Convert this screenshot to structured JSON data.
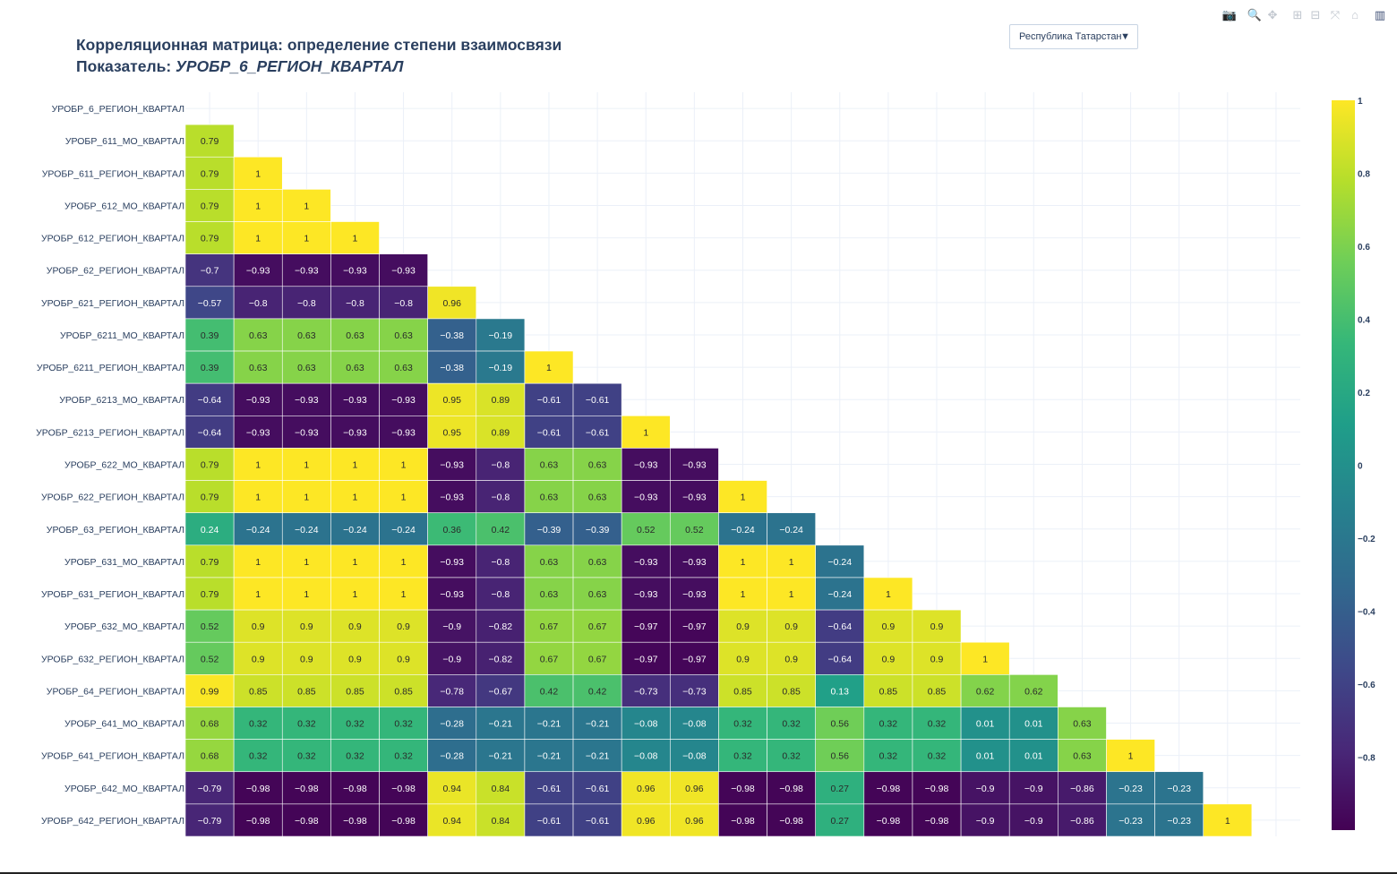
{
  "page": {
    "title_line1": "Корреляционная матрица: определение степени взаимосвязи",
    "title_line2_prefix": "Показатель: ",
    "title_line2_indicator": "УРОБР_6_РЕГИОН_КВАРТАЛ"
  },
  "dropdown": {
    "selected": "Республика Татарстан",
    "arrow": "▼"
  },
  "modebar": [
    {
      "name": "camera-icon",
      "glyph": "📷"
    },
    {
      "name": "zoom-icon",
      "glyph": "🔍"
    },
    {
      "name": "pan-icon",
      "glyph": "✥"
    },
    {
      "name": "zoom-in-icon",
      "glyph": "⊞"
    },
    {
      "name": "zoom-out-icon",
      "glyph": "⊟"
    },
    {
      "name": "autoscale-icon",
      "glyph": "⤧"
    },
    {
      "name": "reset-axes-icon",
      "glyph": "⌂"
    },
    {
      "name": "plotly-logo-icon",
      "glyph": "▥"
    }
  ],
  "chart_data": {
    "type": "heatmap",
    "colorscale": "viridis",
    "colors": [
      "#440154",
      "#482878",
      "#3e4989",
      "#31688e",
      "#26828e",
      "#1f9e89",
      "#35b779",
      "#6ece58",
      "#b5de2b",
      "#fde725"
    ],
    "zmin": -1,
    "zmax": 1,
    "colorbar_ticks": [
      "1",
      "0.8",
      "0.6",
      "0.4",
      "0.2",
      "0",
      "−0.2",
      "−0.4",
      "−0.6",
      "−0.8"
    ],
    "colorbar_tick_values": [
      1,
      0.8,
      0.6,
      0.4,
      0.2,
      0,
      -0.2,
      -0.4,
      -0.6,
      -0.8
    ],
    "rows": [
      "УРОБР_6_РЕГИОН_КВАРТАЛ",
      "УРОБР_611_МО_КВАРТАЛ",
      "УРОБР_611_РЕГИОН_КВАРТАЛ",
      "УРОБР_612_МО_КВАРТАЛ",
      "УРОБР_612_РЕГИОН_КВАРТАЛ",
      "УРОБР_62_РЕГИОН_КВАРТАЛ",
      "УРОБР_621_РЕГИОН_КВАРТАЛ",
      "УРОБР_6211_МО_КВАРТАЛ",
      "УРОБР_6211_РЕГИОН_КВАРТАЛ",
      "УРОБР_6213_МО_КВАРТАЛ",
      "УРОБР_6213_РЕГИОН_КВАРТАЛ",
      "УРОБР_622_МО_КВАРТАЛ",
      "УРОБР_622_РЕГИОН_КВАРТАЛ",
      "УРОБР_63_РЕГИОН_КВАРТАЛ",
      "УРОБР_631_МО_КВАРТАЛ",
      "УРОБР_631_РЕГИОН_КВАРТАЛ",
      "УРОБР_632_МО_КВАРТАЛ",
      "УРОБР_632_РЕГИОН_КВАРТАЛ",
      "УРОБР_64_РЕГИОН_КВАРТАЛ",
      "УРОБР_641_МО_КВАРТАЛ",
      "УРОБР_641_РЕГИОН_КВАРТАЛ",
      "УРОБР_642_МО_КВАРТАЛ",
      "УРОБР_642_РЕГИОН_КВАРТАЛ"
    ],
    "values": [
      [],
      [
        0.79
      ],
      [
        0.79,
        1
      ],
      [
        0.79,
        1,
        1
      ],
      [
        0.79,
        1,
        1,
        1
      ],
      [
        -0.7,
        -0.93,
        -0.93,
        -0.93,
        -0.93
      ],
      [
        -0.57,
        -0.8,
        -0.8,
        -0.8,
        -0.8,
        0.96
      ],
      [
        0.39,
        0.63,
        0.63,
        0.63,
        0.63,
        -0.38,
        -0.19
      ],
      [
        0.39,
        0.63,
        0.63,
        0.63,
        0.63,
        -0.38,
        -0.19,
        1
      ],
      [
        -0.64,
        -0.93,
        -0.93,
        -0.93,
        -0.93,
        0.95,
        0.89,
        -0.61,
        -0.61
      ],
      [
        -0.64,
        -0.93,
        -0.93,
        -0.93,
        -0.93,
        0.95,
        0.89,
        -0.61,
        -0.61,
        1
      ],
      [
        0.79,
        1,
        1,
        1,
        1,
        -0.93,
        -0.8,
        0.63,
        0.63,
        -0.93,
        -0.93
      ],
      [
        0.79,
        1,
        1,
        1,
        1,
        -0.93,
        -0.8,
        0.63,
        0.63,
        -0.93,
        -0.93,
        1
      ],
      [
        0.24,
        -0.24,
        -0.24,
        -0.24,
        -0.24,
        0.36,
        0.42,
        -0.39,
        -0.39,
        0.52,
        0.52,
        -0.24,
        -0.24
      ],
      [
        0.79,
        1,
        1,
        1,
        1,
        -0.93,
        -0.8,
        0.63,
        0.63,
        -0.93,
        -0.93,
        1,
        1,
        -0.24
      ],
      [
        0.79,
        1,
        1,
        1,
        1,
        -0.93,
        -0.8,
        0.63,
        0.63,
        -0.93,
        -0.93,
        1,
        1,
        -0.24,
        1
      ],
      [
        0.52,
        0.9,
        0.9,
        0.9,
        0.9,
        -0.9,
        -0.82,
        0.67,
        0.67,
        -0.97,
        -0.97,
        0.9,
        0.9,
        -0.64,
        0.9,
        0.9
      ],
      [
        0.52,
        0.9,
        0.9,
        0.9,
        0.9,
        -0.9,
        -0.82,
        0.67,
        0.67,
        -0.97,
        -0.97,
        0.9,
        0.9,
        -0.64,
        0.9,
        0.9,
        1
      ],
      [
        0.99,
        0.85,
        0.85,
        0.85,
        0.85,
        -0.78,
        -0.67,
        0.42,
        0.42,
        -0.73,
        -0.73,
        0.85,
        0.85,
        0.13,
        0.85,
        0.85,
        0.62,
        0.62
      ],
      [
        0.68,
        0.32,
        0.32,
        0.32,
        0.32,
        -0.28,
        -0.21,
        -0.21,
        -0.21,
        -0.08,
        -0.08,
        0.32,
        0.32,
        0.56,
        0.32,
        0.32,
        0.01,
        0.01,
        0.63
      ],
      [
        0.68,
        0.32,
        0.32,
        0.32,
        0.32,
        -0.28,
        -0.21,
        -0.21,
        -0.21,
        -0.08,
        -0.08,
        0.32,
        0.32,
        0.56,
        0.32,
        0.32,
        0.01,
        0.01,
        0.63,
        1
      ],
      [
        -0.79,
        -0.98,
        -0.98,
        -0.98,
        -0.98,
        0.94,
        0.84,
        -0.61,
        -0.61,
        0.96,
        0.96,
        -0.98,
        -0.98,
        0.27,
        -0.98,
        -0.98,
        -0.9,
        -0.9,
        -0.86,
        -0.23,
        -0.23
      ],
      [
        -0.79,
        -0.98,
        -0.98,
        -0.98,
        -0.98,
        0.94,
        0.84,
        -0.61,
        -0.61,
        0.96,
        0.96,
        -0.98,
        -0.98,
        0.27,
        -0.98,
        -0.98,
        -0.9,
        -0.9,
        -0.86,
        -0.23,
        -0.23,
        1
      ]
    ]
  }
}
